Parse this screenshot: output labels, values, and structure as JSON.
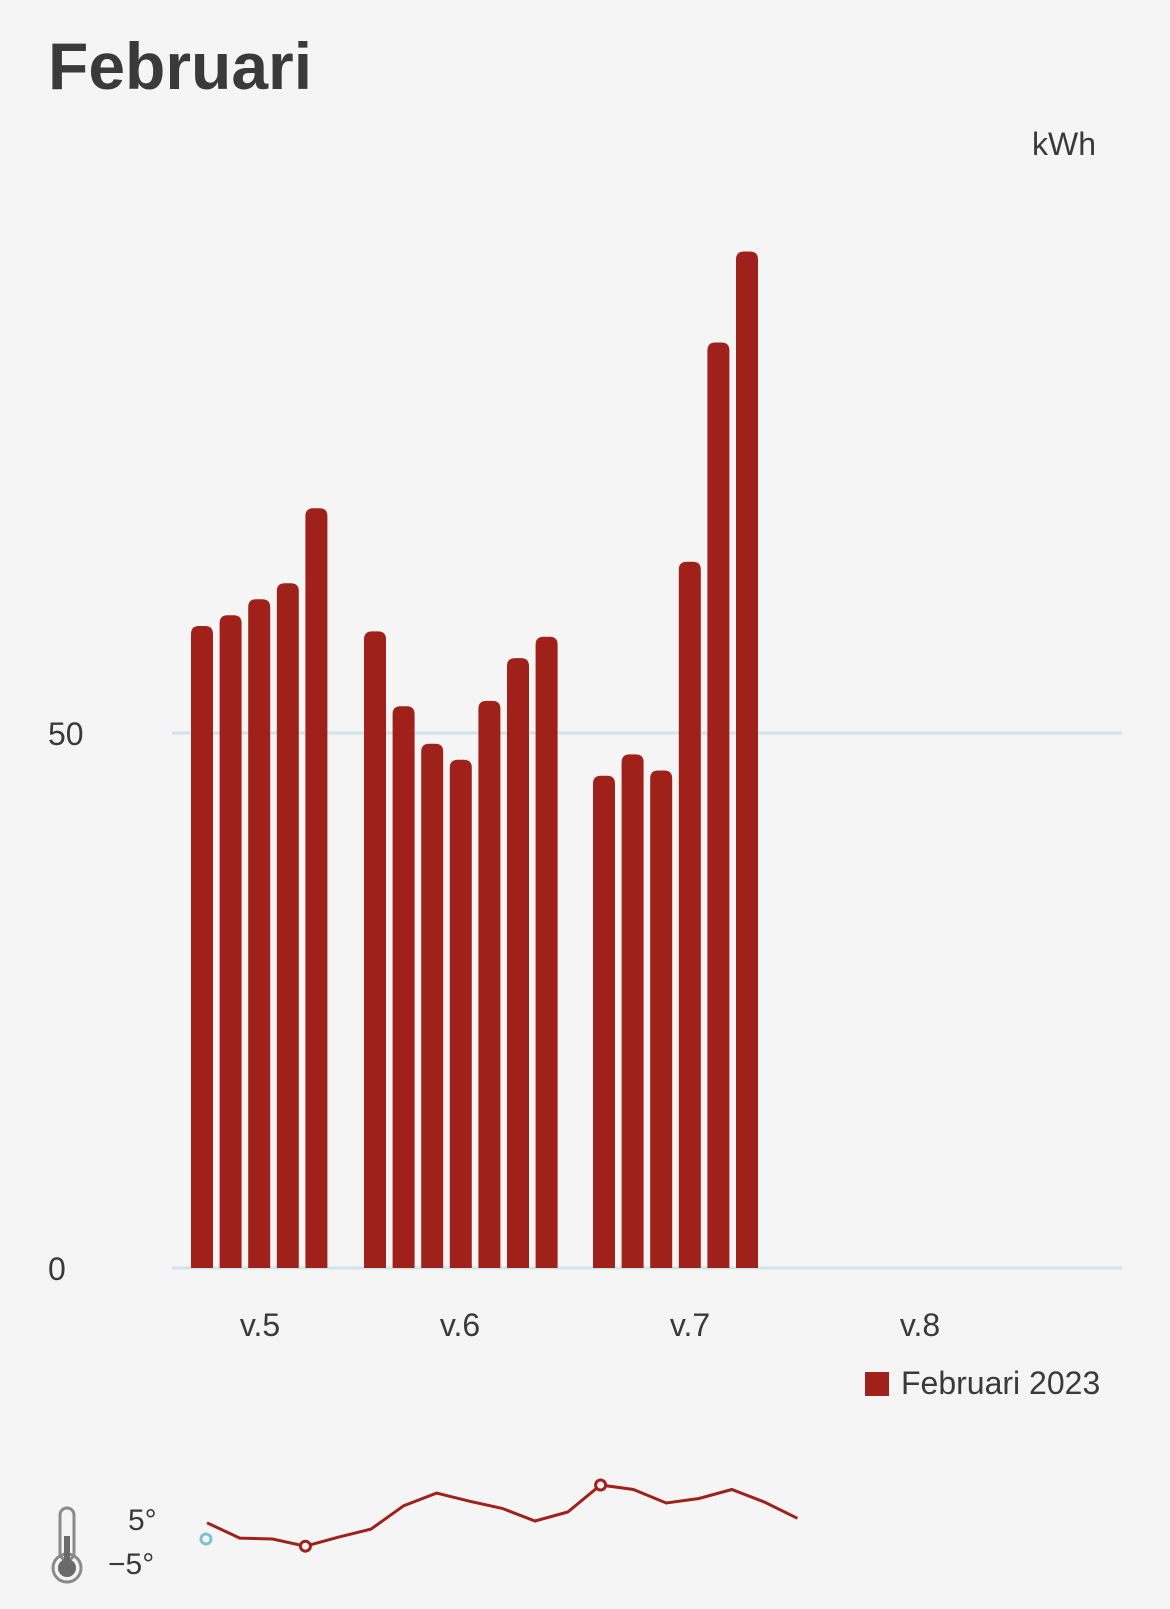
{
  "header": {
    "title": "Februari",
    "unit": "kWh"
  },
  "legend": {
    "label": "Februari 2023",
    "color": "#a0201a"
  },
  "temperature": {
    "max_label": "5°",
    "min_label": "−5°",
    "icon": "thermometer-icon"
  },
  "chart_data": {
    "type": "bar",
    "ylabel": "kWh",
    "ylim": [
      0,
      100
    ],
    "yticks": [
      0,
      50
    ],
    "grid": true,
    "legend_position": "bottom-right",
    "week_labels": [
      "v.5",
      "v.6",
      "v.7",
      "v.8"
    ],
    "series": [
      {
        "name": "Februari 2023",
        "color": "#a0201a",
        "groups": [
          {
            "week": "v.5",
            "values": [
              60,
              61,
              62.5,
              64,
              71
            ]
          },
          {
            "week": "v.6",
            "values": [
              59.5,
              52.5,
              49,
              47.5,
              53,
              57,
              59
            ]
          },
          {
            "week": "v.7",
            "values": [
              46,
              48,
              46.5,
              66,
              86.5,
              95
            ]
          }
        ]
      }
    ],
    "temperature_line": {
      "values": [
        -3.2,
        -4.9,
        -5.0,
        -5.8,
        -4.8,
        -3.9,
        -1.3,
        0.1,
        -0.8,
        -1.6,
        -3.0,
        -2.0,
        1.0,
        0.5,
        -1.0,
        -0.5,
        0.5,
        -0.9,
        -2.7
      ]
    }
  }
}
